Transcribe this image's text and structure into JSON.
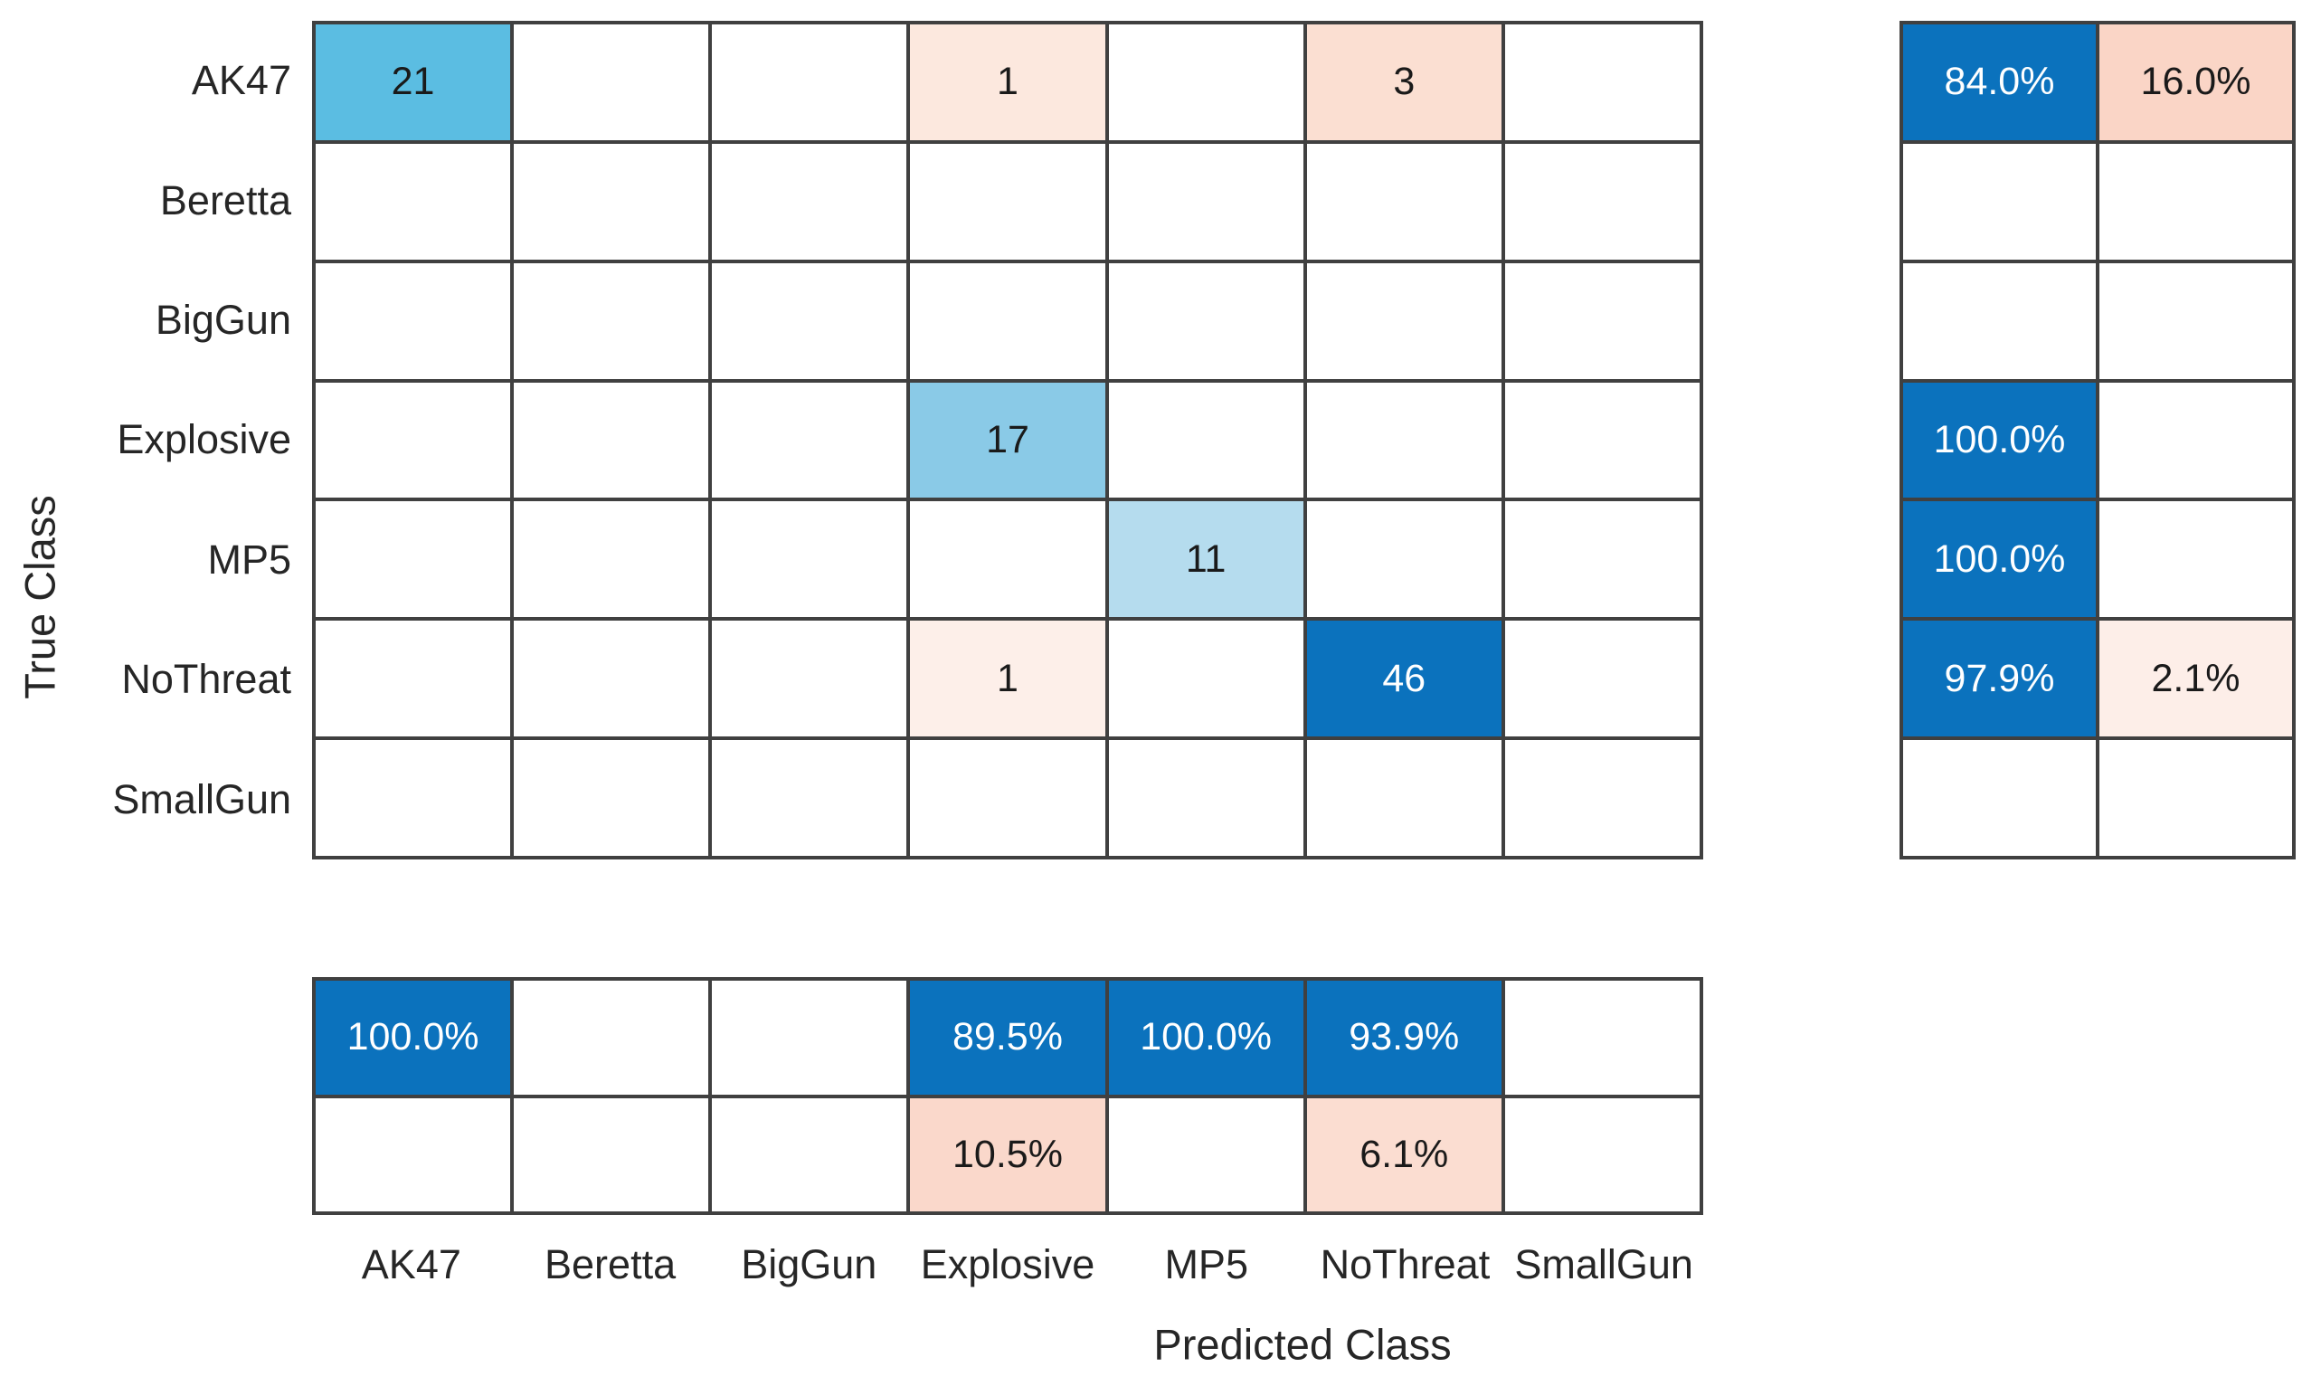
{
  "colors": {
    "grid_line": "#404040",
    "diagonal_blue_max": "#0b72bd",
    "diagonal_blue_21": "#5bbde2",
    "diagonal_blue_17": "#8acae7",
    "diagonal_blue_11": "#b5dcee",
    "off_diagonal_pink": "#fbdfd2",
    "summary_blue": "#0b72bd",
    "summary_pink": "#fad5c6",
    "text_on_dark": "#ffffff",
    "text_on_light": "#1a1a1a"
  },
  "chart_data": {
    "type": "heatmap",
    "subtype": "confusion-matrix",
    "xlabel": "Predicted Class",
    "ylabel": "True Class",
    "classes": [
      "AK47",
      "Beretta",
      "BigGun",
      "Explosive",
      "MP5",
      "NoThreat",
      "SmallGun"
    ],
    "matrix": [
      [
        21,
        0,
        0,
        1,
        0,
        3,
        0
      ],
      [
        0,
        0,
        0,
        0,
        0,
        0,
        0
      ],
      [
        0,
        0,
        0,
        0,
        0,
        0,
        0
      ],
      [
        0,
        0,
        0,
        17,
        0,
        0,
        0
      ],
      [
        0,
        0,
        0,
        0,
        11,
        0,
        0
      ],
      [
        0,
        0,
        0,
        1,
        0,
        46,
        0
      ],
      [
        0,
        0,
        0,
        0,
        0,
        0,
        0
      ]
    ],
    "cell_colors": [
      [
        "#5bbde2",
        "",
        "",
        "#fce8de",
        "",
        "#fbdfd2",
        ""
      ],
      [
        "",
        "",
        "",
        "",
        "",
        "",
        ""
      ],
      [
        "",
        "",
        "",
        "",
        "",
        "",
        ""
      ],
      [
        "",
        "",
        "",
        "#8acae7",
        "",
        "",
        ""
      ],
      [
        "",
        "",
        "",
        "",
        "#b5dcee",
        "",
        ""
      ],
      [
        "",
        "",
        "",
        "#fdefe9",
        "",
        "#0b72bd",
        ""
      ],
      [
        "",
        "",
        "",
        "",
        "",
        "",
        ""
      ]
    ],
    "row_summary": {
      "values": [
        [
          "84.0%",
          "16.0%"
        ],
        [
          "",
          ""
        ],
        [
          "",
          ""
        ],
        [
          "100.0%",
          ""
        ],
        [
          "100.0%",
          ""
        ],
        [
          "97.9%",
          "2.1%"
        ],
        [
          "",
          ""
        ]
      ],
      "colors": [
        [
          "#0b72bd",
          "#fad5c6"
        ],
        [
          "",
          ""
        ],
        [
          "",
          ""
        ],
        [
          "#0b72bd",
          ""
        ],
        [
          "#0b72bd",
          ""
        ],
        [
          "#0b72bd",
          "#fdeee8"
        ],
        [
          "",
          ""
        ]
      ]
    },
    "col_summary": {
      "values": [
        [
          "100.0%",
          "",
          "",
          "89.5%",
          "100.0%",
          "93.9%",
          ""
        ],
        [
          "",
          "",
          "",
          "10.5%",
          "",
          "6.1%",
          ""
        ]
      ],
      "colors": [
        [
          "#0b72bd",
          "",
          "",
          "#0b72bd",
          "#0b72bd",
          "#0b72bd",
          ""
        ],
        [
          "",
          "",
          "",
          "#fad8cb",
          "",
          "#fbddd1",
          ""
        ]
      ]
    }
  }
}
